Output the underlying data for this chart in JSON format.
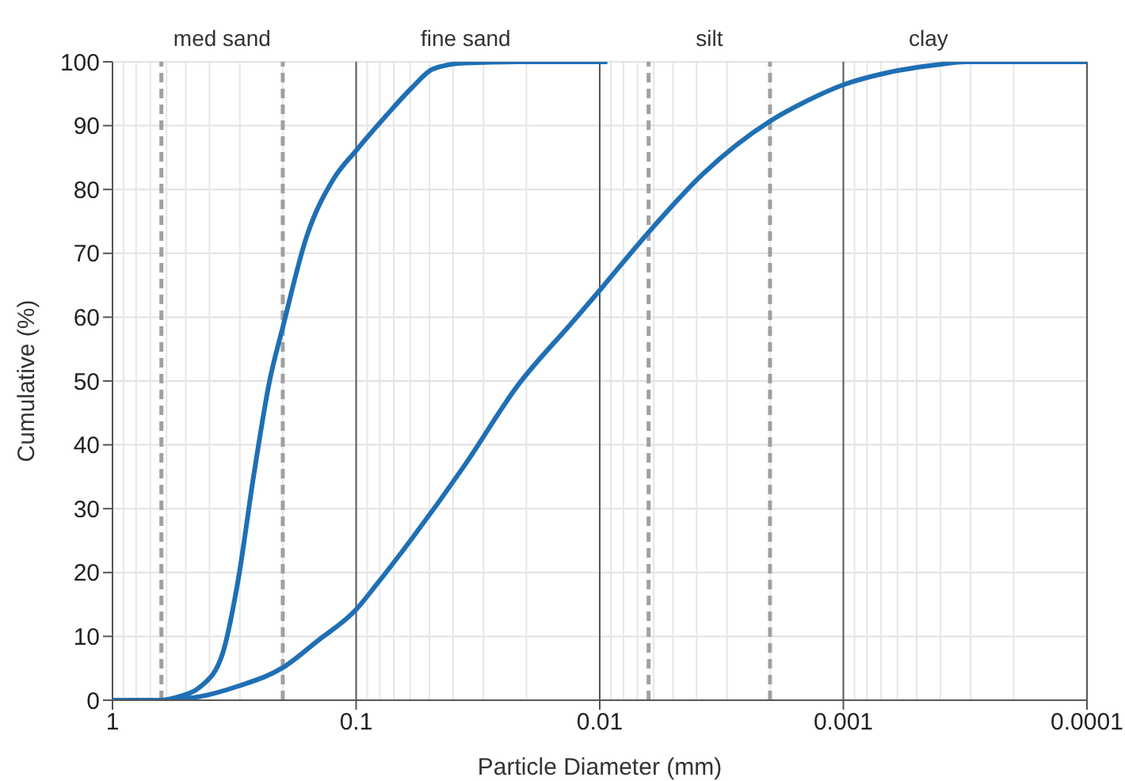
{
  "chart_data": {
    "type": "line",
    "xlabel": "Particle Diameter (mm)",
    "ylabel": "Cumulative (%)",
    "series": [
      {
        "color": "#1f6fb4",
        "x": [
          1,
          0.63,
          0.555,
          0.433,
          0.354,
          0.305,
          0.263,
          0.226,
          0.2,
          0.16,
          0.124,
          0.1,
          0.0755,
          0.0588,
          0.0482,
          0.0357,
          0.0217,
          0.0093
        ],
        "values": [
          0,
          0,
          0.4,
          2.2,
          7.2,
          18.8,
          35.3,
          50.2,
          58.4,
          72.5,
          81.6,
          86.1,
          91.5,
          96,
          98.9,
          99.8,
          100,
          100
        ]
      },
      {
        "color": "#1f6fb4",
        "x": [
          1,
          0.63,
          0.433,
          0.305,
          0.2,
          0.144,
          0.1,
          0.0833,
          0.0588,
          0.0357,
          0.0217,
          0.0131,
          0.01,
          0.00882,
          0.0063,
          0.00378,
          0.002,
          0.00139,
          0.001,
          0.000659,
          0.0004,
          0.000316,
          0.0001
        ],
        "values": [
          0,
          0,
          0.6,
          2.2,
          5.1,
          9.3,
          14.2,
          17.9,
          25.4,
          36.9,
          49.3,
          59,
          64.2,
          66.7,
          73.3,
          82.4,
          90.7,
          94,
          96.4,
          98.3,
          99.6,
          100,
          100
        ]
      }
    ],
    "xlim": [
      1,
      0.0001
    ],
    "xticks": [
      1,
      0.1,
      0.01,
      0.001,
      0.0001
    ],
    "ylim": [
      0,
      100
    ],
    "yticks": [
      0,
      10,
      20,
      30,
      40,
      50,
      60,
      70,
      80,
      90,
      100
    ],
    "log": "x",
    "grid": true,
    "marker": "none",
    "line_style": "solid",
    "ref_lines": [
      {
        "axis": "x",
        "value": 0.63,
        "color": "#a0a0a0",
        "line_style": "dashed"
      },
      {
        "axis": "x",
        "value": 0.2,
        "color": "#a0a0a0",
        "line_style": "dashed"
      },
      {
        "axis": "x",
        "value": 0.0063,
        "color": "#a0a0a0",
        "line_style": "dashed"
      },
      {
        "axis": "x",
        "value": 0.002,
        "color": "#a0a0a0",
        "line_style": "dashed"
      }
    ],
    "annotations": [
      "med sand",
      "fine sand",
      "silt",
      "clay"
    ]
  }
}
